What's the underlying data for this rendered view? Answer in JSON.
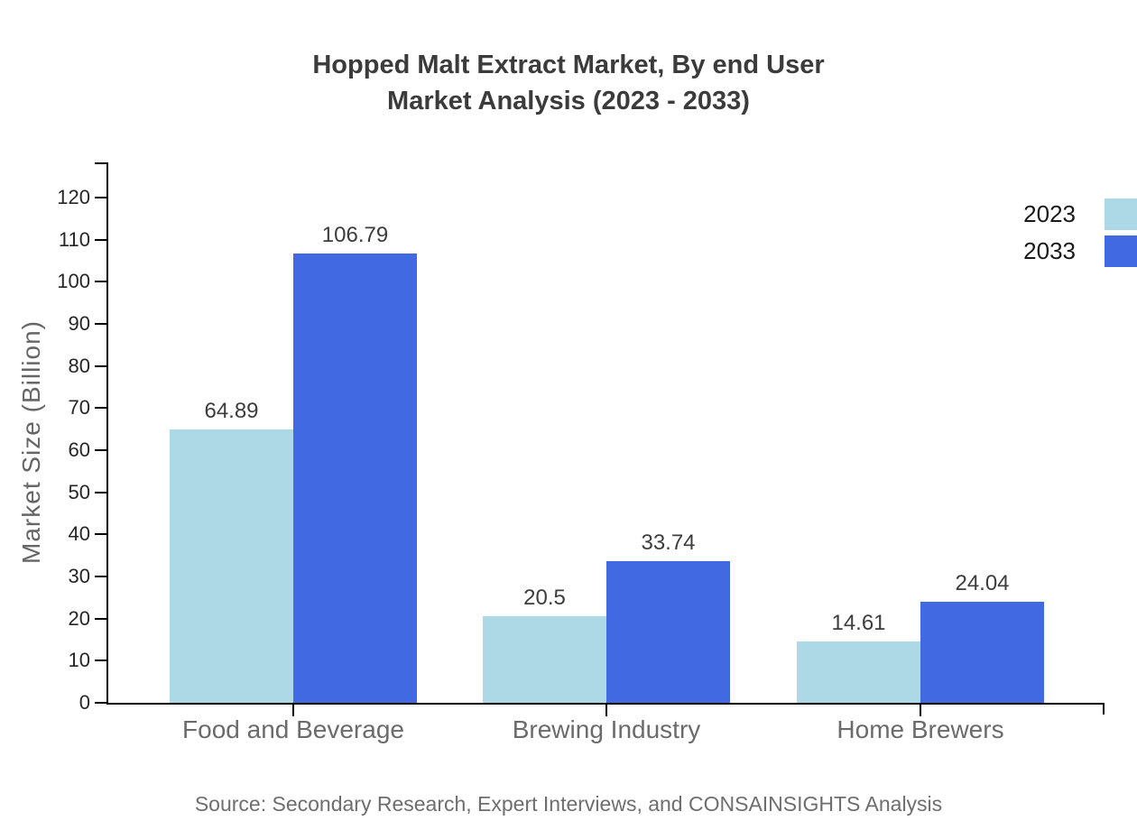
{
  "title": {
    "line1": "Hopped Malt Extract Market, By end User",
    "line2": "Market Analysis (2023 - 2033)"
  },
  "chart_data": {
    "type": "bar",
    "categories": [
      "Food and Beverage",
      "Brewing Industry",
      "Home Brewers"
    ],
    "series": [
      {
        "name": "2023",
        "color": "#ADD8E6",
        "values": [
          64.89,
          20.5,
          14.61
        ]
      },
      {
        "name": "2033",
        "color": "#4169E1",
        "values": [
          106.79,
          33.74,
          24.04
        ]
      }
    ],
    "value_labels": [
      "64.89",
      "106.79",
      "20.5",
      "33.74",
      "14.61",
      "24.04"
    ],
    "title": "Hopped Malt Extract Market, By end User Market Analysis (2023 - 2033)",
    "xlabel": "",
    "ylabel": "Market Size (Billion)",
    "ylim": [
      0,
      128
    ],
    "yticks": [
      0,
      10,
      20,
      30,
      40,
      50,
      60,
      70,
      80,
      90,
      100,
      110,
      120
    ],
    "grid": false,
    "legend_position": "top-right-edge"
  },
  "legend": {
    "items": [
      {
        "label": "2023",
        "color": "#ADD8E6"
      },
      {
        "label": "2033",
        "color": "#4169E1"
      }
    ]
  },
  "source": "Source: Secondary Research, Expert Interviews, and CONSAINSIGHTS Analysis"
}
